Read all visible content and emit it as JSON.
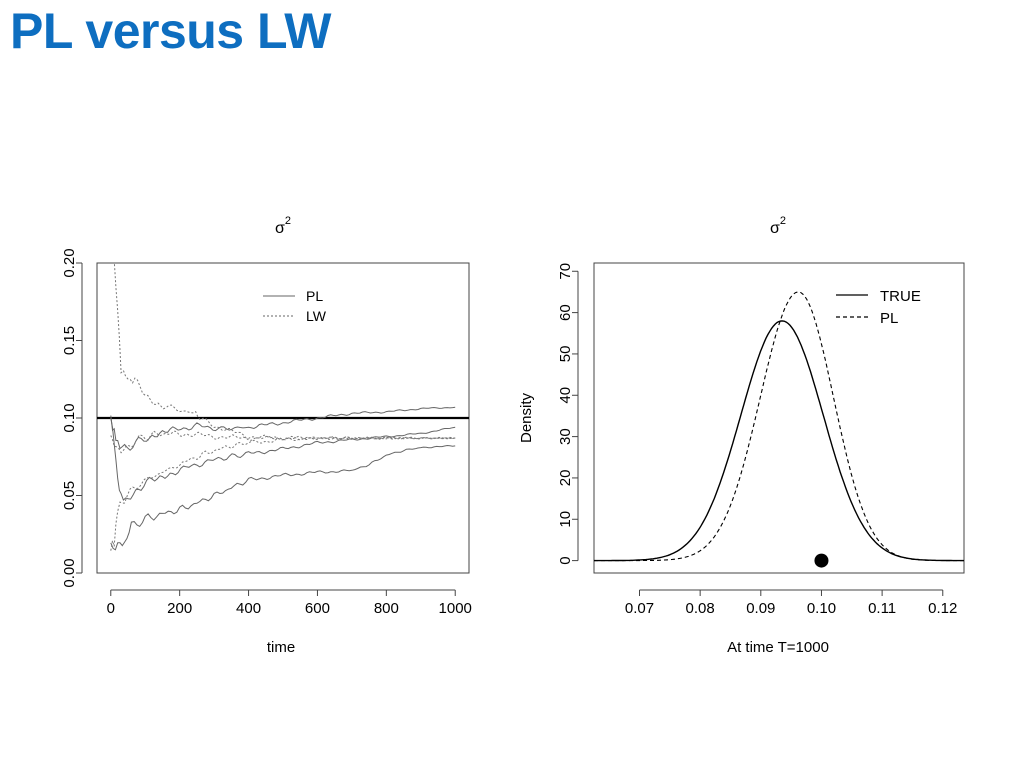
{
  "slide": {
    "title": "PL versus LW"
  },
  "colors": {
    "title": "#0e6ec0",
    "pl_left": "#666666",
    "lw_left": "#777777",
    "truth": "#000000"
  },
  "chart_data": [
    {
      "type": "line",
      "title": "σ",
      "title_superscript": "2",
      "xlabel": "time",
      "ylabel": "",
      "xlim": [
        -40,
        1040
      ],
      "ylim": [
        0,
        0.2
      ],
      "xticks": [
        "0",
        "200",
        "400",
        "600",
        "800",
        "1000"
      ],
      "xtick_values": [
        0,
        200,
        400,
        600,
        800,
        1000
      ],
      "yticks": [
        "0.00",
        "0.05",
        "0.10",
        "0.15",
        "0.20"
      ],
      "ytick_values": [
        0,
        0.05,
        0.1,
        0.15,
        0.2
      ],
      "legend": {
        "position": "top-right",
        "entries": [
          {
            "label": "PL",
            "style": "solid"
          },
          {
            "label": "LW",
            "style": "dotted"
          }
        ]
      },
      "reference_line": {
        "y": 0.1,
        "label": ""
      },
      "series": [
        {
          "name": "PL",
          "style": "solid",
          "values": [
            [
              0,
              0.1
            ],
            [
              10,
              0.085
            ],
            [
              20,
              0.06
            ],
            [
              30,
              0.05
            ],
            [
              50,
              0.048
            ],
            [
              80,
              0.055
            ],
            [
              120,
              0.06
            ],
            [
              180,
              0.065
            ],
            [
              250,
              0.07
            ],
            [
              320,
              0.074
            ],
            [
              400,
              0.077
            ],
            [
              500,
              0.08
            ],
            [
              600,
              0.084
            ],
            [
              700,
              0.086
            ],
            [
              800,
              0.088
            ],
            [
              900,
              0.09
            ],
            [
              1000,
              0.094
            ]
          ]
        },
        {
          "name": "PL",
          "style": "solid",
          "values": [
            [
              0,
              0.1
            ],
            [
              10,
              0.09
            ],
            [
              20,
              0.085
            ],
            [
              40,
              0.08
            ],
            [
              80,
              0.085
            ],
            [
              120,
              0.088
            ],
            [
              180,
              0.092
            ],
            [
              250,
              0.095
            ],
            [
              320,
              0.093
            ],
            [
              400,
              0.094
            ],
            [
              500,
              0.097
            ],
            [
              600,
              0.1
            ],
            [
              700,
              0.103
            ],
            [
              800,
              0.104
            ],
            [
              900,
              0.106
            ],
            [
              1000,
              0.107
            ]
          ]
        },
        {
          "name": "PL",
          "style": "solid",
          "values": [
            [
              0,
              0.018
            ],
            [
              20,
              0.017
            ],
            [
              40,
              0.02
            ],
            [
              60,
              0.03
            ],
            [
              100,
              0.035
            ],
            [
              150,
              0.038
            ],
            [
              200,
              0.041
            ],
            [
              250,
              0.045
            ],
            [
              300,
              0.05
            ],
            [
              350,
              0.055
            ],
            [
              400,
              0.06
            ],
            [
              500,
              0.063
            ],
            [
              600,
              0.065
            ],
            [
              700,
              0.066
            ],
            [
              750,
              0.07
            ],
            [
              800,
              0.076
            ],
            [
              850,
              0.079
            ],
            [
              900,
              0.081
            ],
            [
              1000,
              0.082
            ]
          ]
        },
        {
          "name": "LW",
          "style": "dotted",
          "values": [
            [
              10,
              0.2
            ],
            [
              20,
              0.17
            ],
            [
              30,
              0.13
            ],
            [
              50,
              0.125
            ],
            [
              70,
              0.125
            ],
            [
              100,
              0.115
            ],
            [
              130,
              0.11
            ],
            [
              160,
              0.108
            ],
            [
              200,
              0.105
            ],
            [
              240,
              0.103
            ],
            [
              260,
              0.1
            ],
            [
              300,
              0.095
            ],
            [
              400,
              0.088
            ],
            [
              500,
              0.087
            ],
            [
              600,
              0.087
            ],
            [
              700,
              0.087
            ],
            [
              800,
              0.087
            ],
            [
              1000,
              0.087
            ]
          ]
        },
        {
          "name": "LW",
          "style": "dotted",
          "values": [
            [
              0,
              0.016
            ],
            [
              10,
              0.02
            ],
            [
              20,
              0.04
            ],
            [
              40,
              0.048
            ],
            [
              80,
              0.057
            ],
            [
              120,
              0.062
            ],
            [
              160,
              0.066
            ],
            [
              200,
              0.07
            ],
            [
              250,
              0.075
            ],
            [
              300,
              0.079
            ],
            [
              350,
              0.082
            ],
            [
              400,
              0.084
            ],
            [
              500,
              0.086
            ],
            [
              600,
              0.087
            ],
            [
              700,
              0.087
            ],
            [
              1000,
              0.087
            ]
          ]
        },
        {
          "name": "LW",
          "style": "dotted",
          "values": [
            [
              0,
              0.09
            ],
            [
              10,
              0.082
            ],
            [
              30,
              0.08
            ],
            [
              60,
              0.084
            ],
            [
              100,
              0.088
            ],
            [
              150,
              0.09
            ],
            [
              200,
              0.09
            ],
            [
              300,
              0.088
            ],
            [
              400,
              0.087
            ],
            [
              500,
              0.087
            ],
            [
              1000,
              0.087
            ]
          ]
        }
      ]
    },
    {
      "type": "line",
      "title": "σ",
      "title_superscript": "2",
      "xlabel": "At time T=1000",
      "ylabel": "Density",
      "xlim": [
        0.0625,
        0.1235
      ],
      "ylim": [
        -3,
        72
      ],
      "xticks": [
        "0.07",
        "0.08",
        "0.09",
        "0.10",
        "0.11",
        "0.12"
      ],
      "xtick_values": [
        0.07,
        0.08,
        0.09,
        0.1,
        0.11,
        0.12
      ],
      "yticks": [
        "0",
        "10",
        "20",
        "30",
        "40",
        "50",
        "60",
        "70"
      ],
      "ytick_values": [
        0,
        10,
        20,
        30,
        40,
        50,
        60,
        70
      ],
      "legend": {
        "position": "top-right",
        "entries": [
          {
            "label": "TRUE",
            "style": "solid"
          },
          {
            "label": "PL",
            "style": "dashed"
          }
        ]
      },
      "true_value": {
        "x": 0.1,
        "y": 0,
        "marker": "filled-circle"
      },
      "series": [
        {
          "name": "TRUE",
          "style": "solid",
          "mean": 0.0935,
          "peak": 58,
          "sd_left": 0.0068,
          "sd_right": 0.0068,
          "range": [
            0.0625,
            0.1235
          ]
        },
        {
          "name": "PL",
          "style": "dashed",
          "mean": 0.0962,
          "peak": 65,
          "sd_left": 0.0063,
          "sd_right": 0.0058,
          "range": [
            0.0625,
            0.1235
          ]
        }
      ]
    }
  ]
}
